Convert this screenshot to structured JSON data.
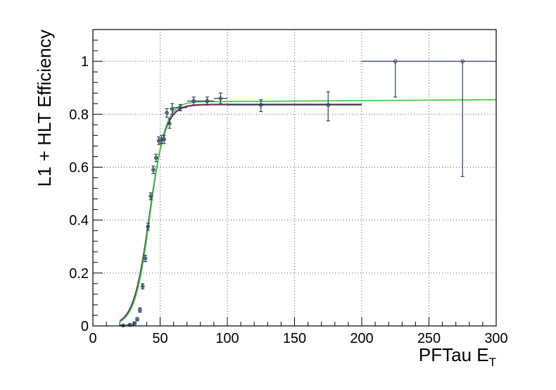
{
  "chart_data": {
    "type": "scatter",
    "title": "",
    "xlabel": "PFTau E",
    "xlabel_subscript": "T",
    "ylabel": "L1 + HLT Efficiency",
    "xlim": [
      0,
      300
    ],
    "ylim": [
      0,
      1.12
    ],
    "grid": true,
    "x_ticks": [
      0,
      50,
      100,
      150,
      200,
      250,
      300
    ],
    "x_tick_labels": [
      "0",
      "50",
      "100",
      "150",
      "200",
      "250",
      "300"
    ],
    "y_ticks": [
      0,
      0.2,
      0.4,
      0.6,
      0.8,
      1.0
    ],
    "y_tick_labels": [
      "0",
      "0.2",
      "0.4",
      "0.6",
      "0.8",
      "1"
    ],
    "colors": {
      "data": "#2a3f5f",
      "fit_purple": "#6b2d7a",
      "fit_red": "#c0392b",
      "fit_green": "#33cc33",
      "grid": "#555555",
      "axes": "#000000"
    },
    "series": [
      {
        "kind": "points",
        "x": [
          22.5,
          27.5,
          31,
          33,
          35,
          37,
          39,
          41,
          43,
          45,
          47,
          49,
          51,
          53,
          55,
          57,
          59,
          65,
          75,
          85,
          95,
          125,
          175,
          225,
          275
        ],
        "x_err": [
          2.5,
          2.5,
          1,
          1,
          1,
          1,
          1,
          1,
          1,
          1,
          1,
          1,
          1,
          1,
          1,
          1,
          1,
          5,
          5,
          5,
          5,
          25,
          25,
          25,
          25
        ],
        "y": [
          0.002,
          0.004,
          0.01,
          0.025,
          0.06,
          0.15,
          0.255,
          0.375,
          0.49,
          0.59,
          0.635,
          0.7,
          0.705,
          0.705,
          0.805,
          0.765,
          0.82,
          0.825,
          0.85,
          0.85,
          0.86,
          0.835,
          0.835,
          1.0,
          1.0
        ],
        "y_err_low": [
          0.002,
          0.004,
          0.005,
          0.006,
          0.008,
          0.01,
          0.012,
          0.013,
          0.013,
          0.014,
          0.014,
          0.014,
          0.015,
          0.016,
          0.016,
          0.018,
          0.02,
          0.012,
          0.015,
          0.015,
          0.02,
          0.025,
          0.06,
          0.135,
          0.435
        ],
        "y_err_high": [
          0.002,
          0.004,
          0.005,
          0.006,
          0.008,
          0.01,
          0.012,
          0.013,
          0.013,
          0.014,
          0.014,
          0.014,
          0.015,
          0.016,
          0.016,
          0.018,
          0.02,
          0.012,
          0.015,
          0.015,
          0.02,
          0.02,
          0.05,
          0.0,
          0.0
        ]
      },
      {
        "kind": "fit",
        "color_key": "fit_red",
        "x_range": [
          20,
          200
        ],
        "plateau": 0.838,
        "mid": 42.2,
        "width": 5.8
      },
      {
        "kind": "fit",
        "color_key": "fit_purple",
        "x_range": [
          20,
          200
        ],
        "plateau": 0.836,
        "mid": 42.0,
        "width": 5.9
      },
      {
        "kind": "fit",
        "color_key": "fit_green",
        "x_range": [
          20,
          300
        ],
        "plateau": 0.848,
        "mid": 42.6,
        "width": 5.7,
        "end_value": 0.855
      }
    ]
  }
}
